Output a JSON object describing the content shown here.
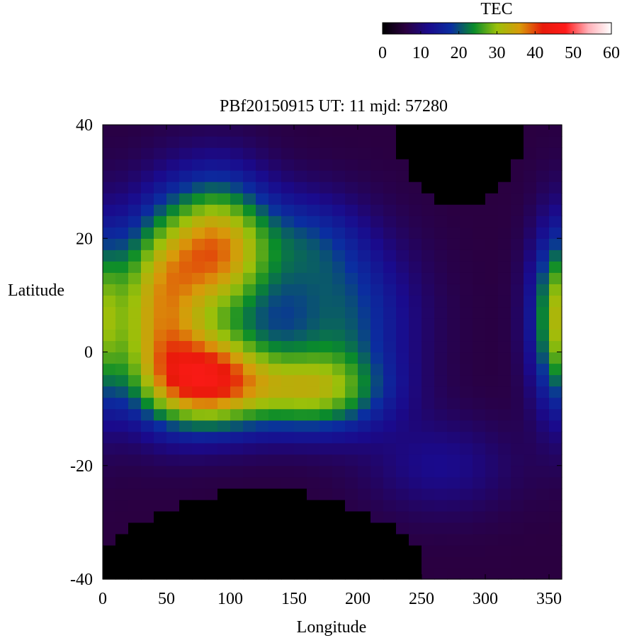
{
  "chart_data": {
    "type": "heatmap",
    "title": "PBf20150915  UT: 11  mjd: 57280",
    "xlabel": "Longitude",
    "ylabel": "Latitude",
    "xlim": [
      0,
      360
    ],
    "ylim": [
      -40,
      40
    ],
    "xticks": [
      0,
      50,
      100,
      150,
      200,
      250,
      300,
      350
    ],
    "yticks": [
      -40,
      -20,
      0,
      20,
      40
    ],
    "colorbar": {
      "label": "TEC",
      "range": [
        0,
        60
      ],
      "ticks": [
        0,
        10,
        20,
        30,
        40,
        50,
        60
      ],
      "colors": [
        "#000000",
        "#2a0040",
        "#1a0a8c",
        "#0a2ea0",
        "#0a8c2a",
        "#9ac00a",
        "#d89a0a",
        "#e81a0a",
        "#ff1a1a",
        "#ffb0b8",
        "#ffffff"
      ]
    },
    "grid": false,
    "features": [
      {
        "lon": 90,
        "lat": 18,
        "amp": 30,
        "sigma_lon": 30,
        "sigma_lat": 9
      },
      {
        "lon": 82,
        "lat": -5,
        "amp": 34,
        "sigma_lon": 34,
        "sigma_lat": 6
      },
      {
        "lon": 42,
        "lat": 8,
        "amp": 24,
        "sigma_lon": 24,
        "sigma_lat": 11
      },
      {
        "lon": 165,
        "lat": -7,
        "amp": 20,
        "sigma_lon": 38,
        "sigma_lat": 5
      },
      {
        "lon": 185,
        "lat": 6,
        "amp": 14,
        "sigma_lon": 40,
        "sigma_lat": 10
      },
      {
        "lon": 160,
        "lat": 20,
        "amp": 8,
        "sigma_lon": 30,
        "sigma_lat": 6
      },
      {
        "lon": 265,
        "lat": -20,
        "amp": 6,
        "sigma_lon": 40,
        "sigma_lat": 6
      },
      {
        "lon": 360,
        "lat": 6,
        "amp": 27,
        "sigma_lon": 16,
        "sigma_lat": 11
      },
      {
        "lon": -5,
        "lat": 6,
        "amp": 20,
        "sigma_lon": 16,
        "sigma_lat": 11
      }
    ],
    "background_tec": 6,
    "no_data_regions": [
      {
        "lon_range": [
          0,
          250
        ],
        "lat_from": -40,
        "lat_to": -24
      },
      {
        "lon_range": [
          230,
          330
        ],
        "lat_from": 26,
        "lat_to": 40
      }
    ]
  }
}
